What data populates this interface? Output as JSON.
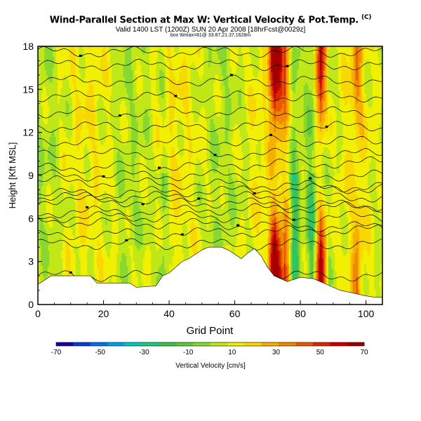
{
  "header": {
    "title": "Wind-Parallel Section at Max W: Vertical Velocity & Pot.Temp.",
    "title_mark": "(C)",
    "subtitle": "Valid 1400 LST (1200Z) SUN 20 Apr 2008 [18hrFcst@0029z]",
    "subtitle2": "box Wmax=81@ 33.87,21.37,1628m"
  },
  "chart_data": {
    "type": "heatmap",
    "title": "Wind-Parallel Section at Max W: Vertical Velocity & Pot.Temp.",
    "xlabel": "Grid Point",
    "ylabel": "Height [Kft MSL]",
    "xlim": [
      0,
      105
    ],
    "ylim": [
      0,
      18
    ],
    "xticks": [
      0,
      20,
      40,
      60,
      80,
      100
    ],
    "yticks": [
      0,
      3,
      6,
      9,
      12,
      15,
      18
    ],
    "colorbar": {
      "label": "Vertical Velocity [cm/s]",
      "ticks": [
        -70,
        -50,
        -30,
        -10,
        10,
        30,
        50,
        70
      ],
      "colors": [
        "#1a00a0",
        "#0a3dd0",
        "#0070e8",
        "#00a0e8",
        "#00c8c0",
        "#20c880",
        "#3cc050",
        "#60c838",
        "#88d830",
        "#c0e818",
        "#f0f000",
        "#f8d800",
        "#f8b000",
        "#f08800",
        "#e85800",
        "#d82800",
        "#c80000",
        "#a00000"
      ]
    },
    "terrain": [
      [
        0,
        1.4
      ],
      [
        2,
        1.7
      ],
      [
        4,
        2.0
      ],
      [
        16,
        2.0
      ],
      [
        18,
        1.5
      ],
      [
        28,
        1.5
      ],
      [
        30,
        1.2
      ],
      [
        36,
        1.3
      ],
      [
        38,
        2.0
      ],
      [
        40,
        2.2
      ],
      [
        42,
        2.6
      ],
      [
        44,
        3.0
      ],
      [
        46,
        3.2
      ],
      [
        48,
        3.5
      ],
      [
        50,
        3.8
      ],
      [
        52,
        4.0
      ],
      [
        56,
        4.0
      ],
      [
        58,
        3.8
      ],
      [
        60,
        3.5
      ],
      [
        62,
        3.2
      ],
      [
        64,
        3.6
      ],
      [
        66,
        3.9
      ],
      [
        68,
        3.4
      ],
      [
        70,
        2.6
      ],
      [
        72,
        2.0
      ],
      [
        74,
        1.8
      ],
      [
        76,
        1.6
      ],
      [
        80,
        1.9
      ],
      [
        84,
        1.8
      ],
      [
        88,
        1.4
      ],
      [
        92,
        1.0
      ],
      [
        96,
        0.8
      ],
      [
        100,
        0.6
      ],
      [
        103,
        0.5
      ]
    ],
    "updraft_columns": [
      {
        "x": 72,
        "max_w": 70
      },
      {
        "x": 75,
        "max_w": 45
      },
      {
        "x": 86,
        "max_w": 65
      },
      {
        "x": 97,
        "max_w": 25
      }
    ],
    "downdraft_columns": [
      {
        "x": 78,
        "min_w": -30
      },
      {
        "x": 83,
        "min_w": -20
      },
      {
        "x": 38,
        "min_w": -15
      }
    ],
    "theta_contour_heights": [
      2.0,
      4.2,
      5.0,
      5.6,
      6.1,
      6.6,
      7.1,
      7.5,
      7.9,
      8.4,
      9.0,
      9.7,
      10.5,
      11.4,
      12.4,
      13.4,
      14.5,
      15.6,
      16.7,
      17.6
    ]
  }
}
